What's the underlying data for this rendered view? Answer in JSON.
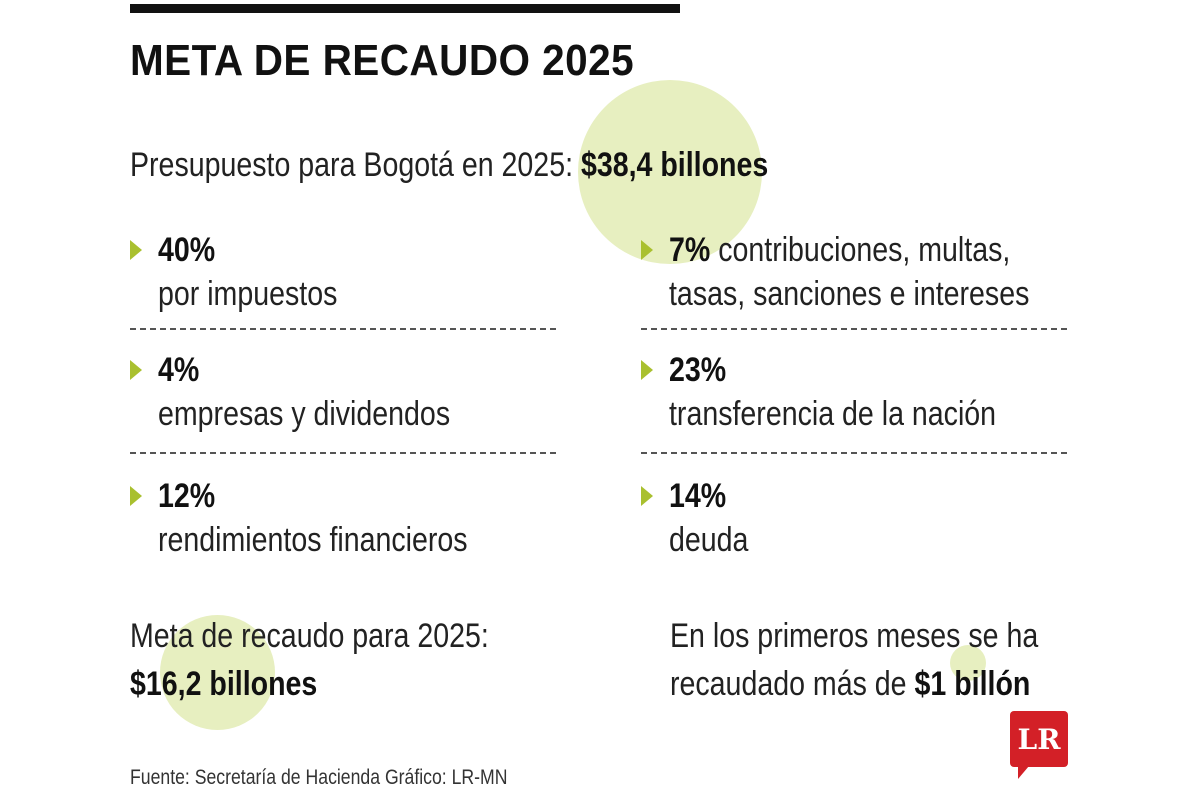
{
  "title": "META DE RECAUDO 2025",
  "budget": {
    "label": "Presupuesto para Bogotá en 2025: ",
    "value": "$38,4 billones"
  },
  "items": [
    {
      "percent": "40%",
      "text": "",
      "description": "por impuestos"
    },
    {
      "percent": "7%",
      "text": " contribuciones, multas,",
      "description": "tasas, sanciones e intereses"
    },
    {
      "percent": "4%",
      "text": "",
      "description": "empresas y dividendos"
    },
    {
      "percent": "23%",
      "text": "",
      "description": "transferencia de la nación"
    },
    {
      "percent": "12%",
      "text": "",
      "description": "rendimientos financieros"
    },
    {
      "percent": "14%",
      "text": "",
      "description": "deuda"
    }
  ],
  "goal": {
    "label": "Meta de recaudo para 2025:",
    "value": "$16,2 billones"
  },
  "collected": {
    "line1": "En los primeros meses se ha",
    "line2_prefix": "recaudado más de ",
    "value": "$1 billón"
  },
  "source": "Fuente: Secretaría de Hacienda   Gráfico: LR-MN",
  "logo": "LR",
  "colors": {
    "accent_green": "#a9c02f",
    "highlight": "#e7efc0",
    "logo_red": "#d32027",
    "text": "#1a1a1a"
  }
}
